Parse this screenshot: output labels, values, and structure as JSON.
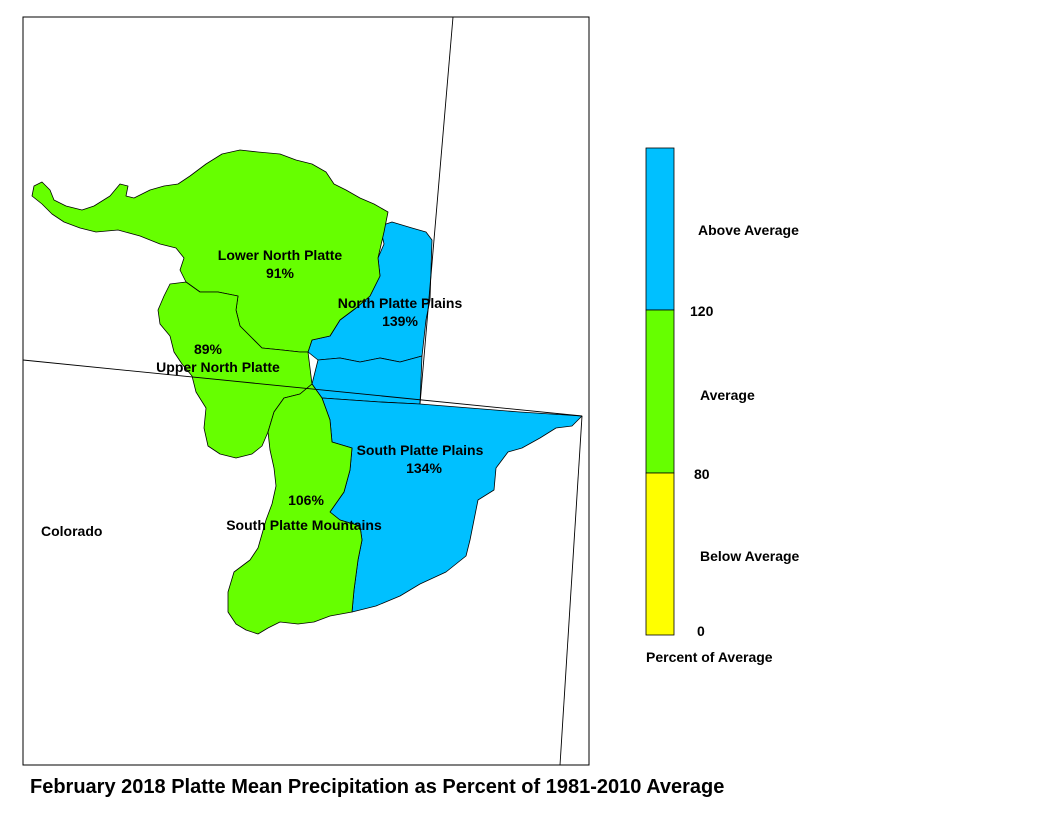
{
  "title": "February 2018 Platte Mean Precipitation as Percent of 1981-2010 Average",
  "colors": {
    "above": "#00c0ff",
    "average": "#66ff00",
    "below": "#ffff00",
    "outline": "#000000"
  },
  "map": {
    "state_label": "Colorado",
    "basins": [
      {
        "name": "Lower North Platte",
        "value": "91%",
        "category": "average"
      },
      {
        "name": "North Platte Plains",
        "value": "139%",
        "category": "above"
      },
      {
        "name": "Upper North Platte",
        "value": "89%",
        "category": "average"
      },
      {
        "name": "South Platte Plains",
        "value": "134%",
        "category": "above"
      },
      {
        "name": "South Platte Mountains",
        "value": "106%",
        "category": "average"
      }
    ]
  },
  "legend": {
    "title": "Percent of Average",
    "categories": [
      {
        "label": "Above Average",
        "color": "#00c0ff"
      },
      {
        "label": "Average",
        "color": "#66ff00"
      },
      {
        "label": "Below Average",
        "color": "#ffff00"
      }
    ],
    "breaks": [
      "120",
      "80",
      "0"
    ]
  }
}
